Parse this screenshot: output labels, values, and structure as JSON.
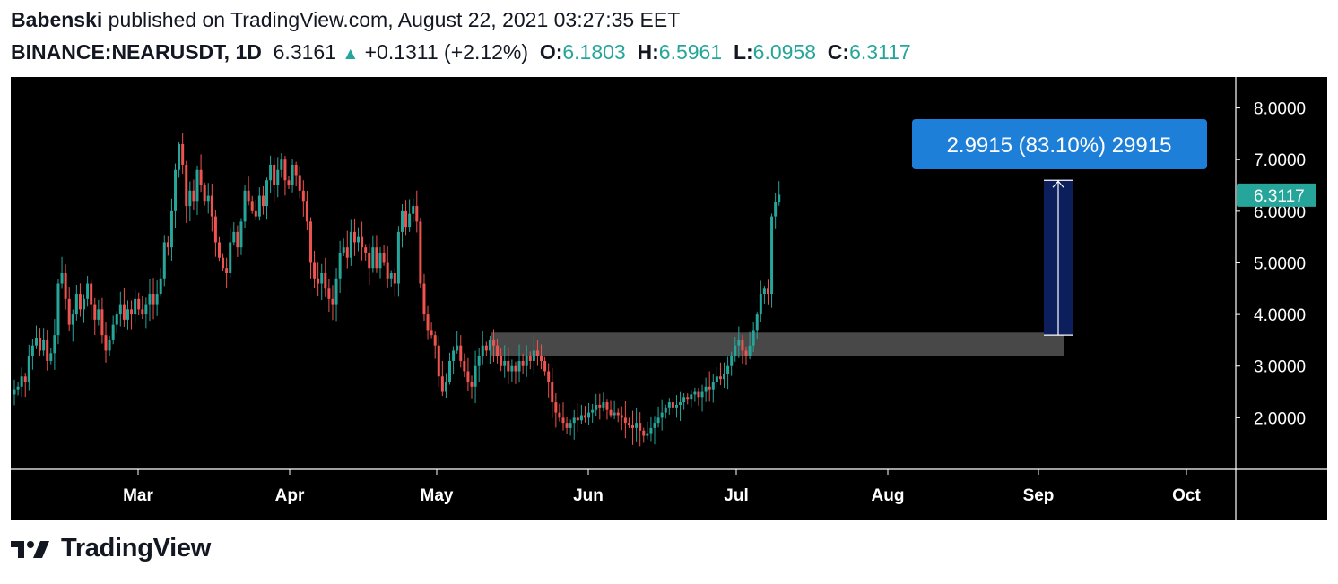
{
  "header": {
    "author": "Babenski",
    "published_text": "published on TradingView.com, August 22, 2021 03:27:35 EET",
    "symbol": "BINANCE:NEARUSDT, 1D",
    "last": "6.3161",
    "change": "+0.1311 (+2.12%)",
    "o_label": "O:",
    "o_value": "6.1803",
    "h_label": "H:",
    "h_value": "6.5961",
    "l_label": "L:",
    "l_value": "6.0958",
    "c_label": "C:",
    "c_value": "6.3117"
  },
  "footer": {
    "brand": "TradingView",
    "logo_icon": "tradingview-logo-icon"
  },
  "colors": {
    "up": "#26a69a",
    "down": "#ef5350",
    "label_blue": "#1e7fd8",
    "range_fill": "#0d1e5c",
    "zone": "#5a5a5a"
  },
  "chart_data": {
    "type": "candlestick",
    "x_ticks": [
      "Mar",
      "Apr",
      "May",
      "Jun",
      "Jul",
      "Aug",
      "Sep",
      "Oct"
    ],
    "y_ticks": [
      "8.0000",
      "7.0000",
      "6.0000",
      "5.0000",
      "4.0000",
      "3.0000",
      "2.0000"
    ],
    "ylim": [
      1.0,
      8.6
    ],
    "last_price_label": "6.3117",
    "closes": [
      2.55,
      2.6,
      2.8,
      2.7,
      3.2,
      3.4,
      3.55,
      3.3,
      3.5,
      3.1,
      3.25,
      3.6,
      4.6,
      4.8,
      4.3,
      3.8,
      4.0,
      4.4,
      4.1,
      4.3,
      4.6,
      4.2,
      3.9,
      4.1,
      3.6,
      3.3,
      3.5,
      3.8,
      4.0,
      4.2,
      3.9,
      4.1,
      4.0,
      4.3,
      4.1,
      4.0,
      4.2,
      4.4,
      4.2,
      4.4,
      4.7,
      5.4,
      5.3,
      6.0,
      6.8,
      7.3,
      6.9,
      6.1,
      6.4,
      6.2,
      6.8,
      6.5,
      6.2,
      6.3,
      5.9,
      5.4,
      5.1,
      4.9,
      4.8,
      5.4,
      5.6,
      5.3,
      5.8,
      6.4,
      6.2,
      6.0,
      5.9,
      6.3,
      6.1,
      6.6,
      6.9,
      6.5,
      6.8,
      7.0,
      6.6,
      6.5,
      6.9,
      6.7,
      6.4,
      6.2,
      5.8,
      5.0,
      4.7,
      4.6,
      4.8,
      4.5,
      4.3,
      4.2,
      4.7,
      5.2,
      5.3,
      5.1,
      5.6,
      5.4,
      5.5,
      5.3,
      5.2,
      4.9,
      5.3,
      4.9,
      5.2,
      5.0,
      4.7,
      4.8,
      4.6,
      5.6,
      6.0,
      5.7,
      5.95,
      6.1,
      5.8,
      4.6,
      4.0,
      3.7,
      3.6,
      3.4,
      2.8,
      2.5,
      2.7,
      3.1,
      3.3,
      3.4,
      3.1,
      2.9,
      2.7,
      2.6,
      3.0,
      3.2,
      3.4,
      3.3,
      3.5,
      3.4,
      3.2,
      3.0,
      3.1,
      2.9,
      3.0,
      2.9,
      3.1,
      3.0,
      3.2,
      3.1,
      3.3,
      3.2,
      3.1,
      2.9,
      2.7,
      2.3,
      2.1,
      2.0,
      1.9,
      1.8,
      1.9,
      2.0,
      1.95,
      2.05,
      2.0,
      2.1,
      2.15,
      2.25,
      2.2,
      2.3,
      2.15,
      2.05,
      2.1,
      2.05,
      2.0,
      1.9,
      1.85,
      1.8,
      1.9,
      1.75,
      1.65,
      1.7,
      1.8,
      1.9,
      2.0,
      2.1,
      2.2,
      2.3,
      2.2,
      2.25,
      2.3,
      2.4,
      2.35,
      2.45,
      2.5,
      2.4,
      2.5,
      2.6,
      2.55,
      2.7,
      2.8,
      2.75,
      2.85,
      3.0,
      3.2,
      3.4,
      3.5,
      3.3,
      3.2,
      3.4,
      3.7,
      4.0,
      4.4,
      4.5,
      4.4,
      5.9,
      6.18,
      6.32
    ]
  },
  "annotations": {
    "measure_label": "2.9915 (83.10%) 29915",
    "zone_low": 3.2,
    "zone_high": 3.65,
    "range_low": 3.6,
    "range_high": 6.6
  }
}
